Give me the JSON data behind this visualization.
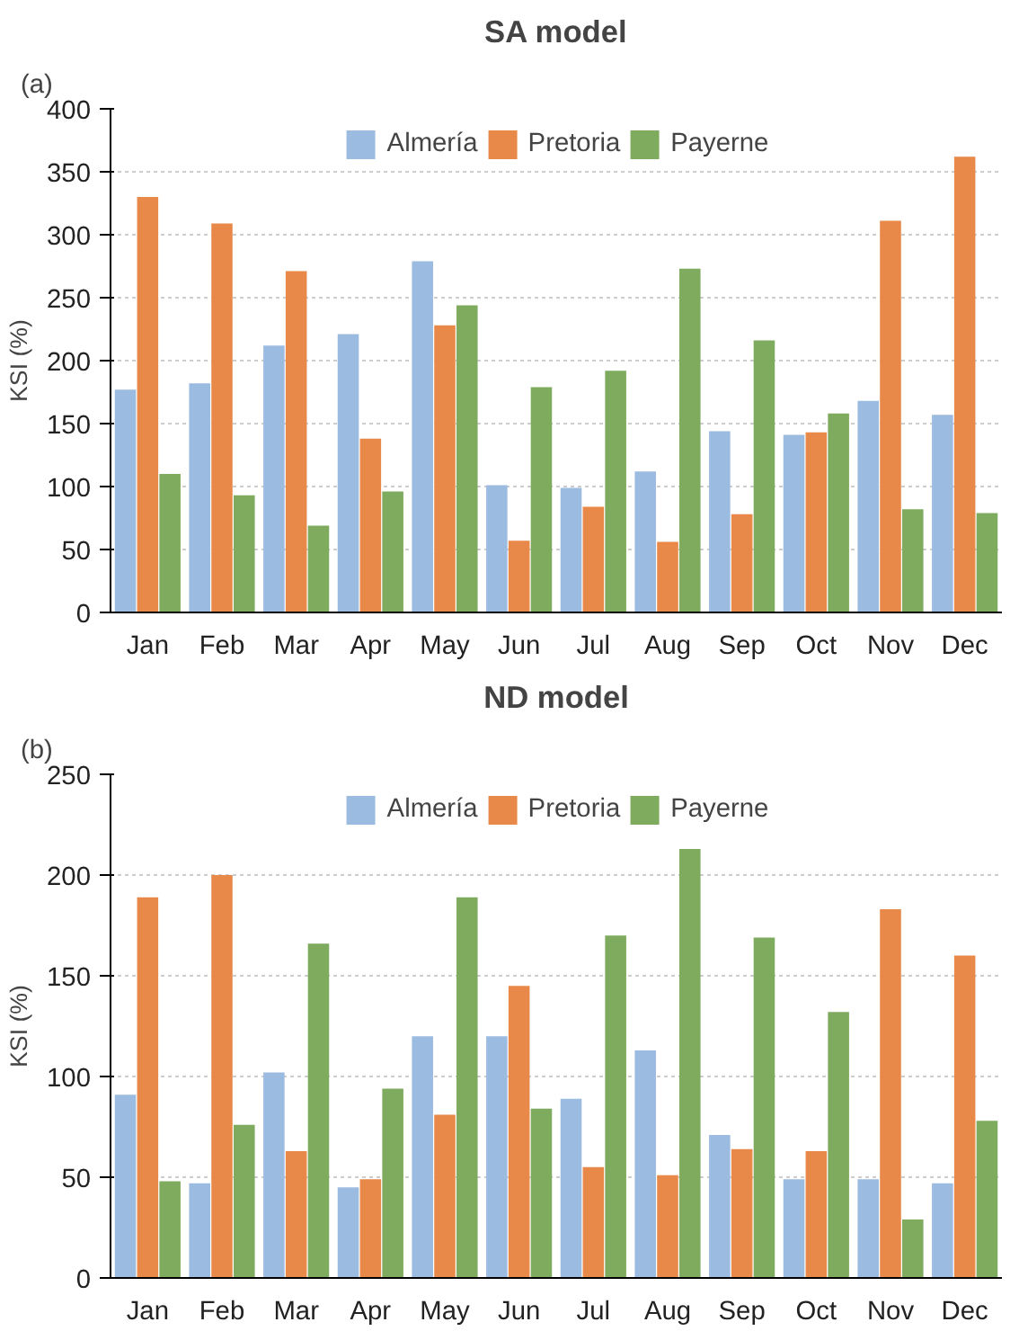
{
  "chart_data": [
    {
      "type": "bar",
      "title": "SA model",
      "ylabel": "KSI (%)",
      "annotations": [
        "(a)"
      ],
      "categories": [
        "Jan",
        "Feb",
        "Mar",
        "Apr",
        "May",
        "Jun",
        "Jul",
        "Aug",
        "Sep",
        "Oct",
        "Nov",
        "Dec"
      ],
      "series": [
        {
          "name": "Almería",
          "color": "#9bbbe0",
          "values": [
            177,
            182,
            212,
            221,
            279,
            101,
            99,
            112,
            144,
            141,
            168,
            157
          ]
        },
        {
          "name": "Pretoria",
          "color": "#e8894a",
          "values": [
            330,
            309,
            271,
            138,
            228,
            57,
            84,
            56,
            78,
            143,
            311,
            362
          ]
        },
        {
          "name": "Payerne",
          "color": "#7fab5e",
          "values": [
            110,
            93,
            69,
            96,
            244,
            179,
            192,
            273,
            216,
            158,
            82,
            79
          ]
        }
      ],
      "ylim": [
        0,
        400
      ],
      "yticks": [
        0,
        50,
        100,
        150,
        200,
        250,
        300,
        350,
        400
      ],
      "grid": "y",
      "legend": "top"
    },
    {
      "type": "bar",
      "title": "ND model",
      "ylabel": "KSI (%)",
      "annotations": [
        "(b)"
      ],
      "categories": [
        "Jan",
        "Feb",
        "Mar",
        "Apr",
        "May",
        "Jun",
        "Jul",
        "Aug",
        "Sep",
        "Oct",
        "Nov",
        "Dec"
      ],
      "series": [
        {
          "name": "Almería",
          "color": "#9bbbe0",
          "values": [
            91,
            47,
            102,
            45,
            120,
            120,
            89,
            113,
            71,
            49,
            49,
            47
          ]
        },
        {
          "name": "Pretoria",
          "color": "#e8894a",
          "values": [
            189,
            200,
            63,
            49,
            81,
            145,
            55,
            51,
            64,
            63,
            183,
            160
          ]
        },
        {
          "name": "Payerne",
          "color": "#7fab5e",
          "values": [
            48,
            76,
            166,
            94,
            189,
            84,
            170,
            213,
            169,
            132,
            29,
            78
          ]
        }
      ],
      "ylim": [
        0,
        250
      ],
      "yticks": [
        0,
        50,
        100,
        150,
        200,
        250
      ],
      "grid": "y",
      "legend": "top"
    }
  ]
}
